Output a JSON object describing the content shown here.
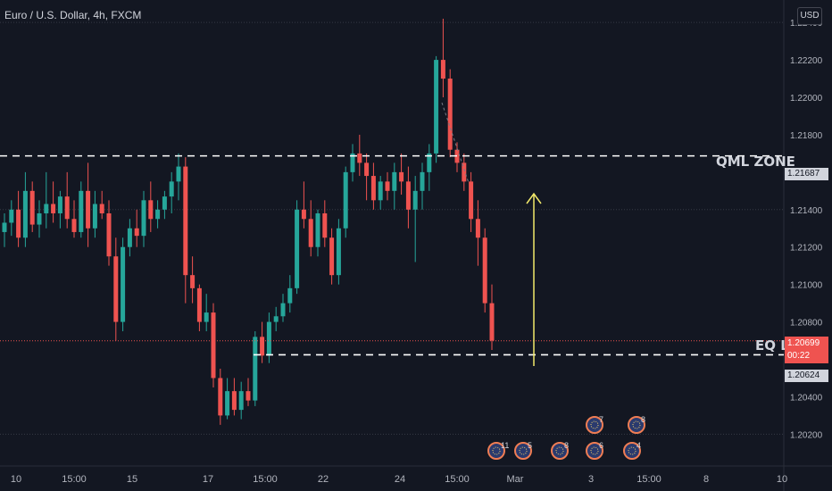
{
  "header": {
    "title": "Euro / U.S. Dollar, 4h, FXCM",
    "currency": "USD"
  },
  "colors": {
    "background": "#131722",
    "bull": "#26a69a",
    "bear": "#ef5350",
    "grid": "#363a45",
    "text": "#b2b5be",
    "arrow": "#f2e96b"
  },
  "annotations": {
    "qml_label": "QML ZONE",
    "qml_price": "1.21687",
    "eq_label": "EQ L",
    "eq_price": "1.20624",
    "current_price": "1.20699",
    "countdown": "00:22"
  },
  "chart_data": {
    "type": "candlestick",
    "y_ticks": [
      "1.22400",
      "1.22200",
      "1.22000",
      "1.21800",
      "1.21600",
      "1.21400",
      "1.21200",
      "1.21000",
      "1.20800",
      "1.20600",
      "1.20400",
      "1.20200"
    ],
    "x_ticks": [
      "10",
      "15:00",
      "15",
      "17",
      "15:00",
      "22",
      "24",
      "15:00",
      "Mar",
      "3",
      "15:00",
      "8",
      "10"
    ],
    "ylim": [
      1.2003,
      1.2252
    ],
    "levels": {
      "qml": 1.21687,
      "eq": 1.20624,
      "current": 1.20699
    },
    "candles": [
      [
        1.2128,
        1.2138,
        1.212,
        1.2133
      ],
      [
        1.2133,
        1.2145,
        1.2126,
        1.214
      ],
      [
        1.214,
        1.215,
        1.212,
        1.2125
      ],
      [
        1.2125,
        1.216,
        1.212,
        1.215
      ],
      [
        1.215,
        1.2155,
        1.2128,
        1.2132
      ],
      [
        1.2132,
        1.2145,
        1.2125,
        1.2138
      ],
      [
        1.2138,
        1.216,
        1.213,
        1.2143
      ],
      [
        1.2143,
        1.2155,
        1.2133,
        1.2138
      ],
      [
        1.2138,
        1.215,
        1.213,
        1.2147
      ],
      [
        1.2147,
        1.216,
        1.213,
        1.2135
      ],
      [
        1.2135,
        1.2145,
        1.2125,
        1.2128
      ],
      [
        1.2128,
        1.2155,
        1.2125,
        1.215
      ],
      [
        1.215,
        1.2165,
        1.212,
        1.213
      ],
      [
        1.213,
        1.215,
        1.2125,
        1.2143
      ],
      [
        1.2143,
        1.215,
        1.2135,
        1.2138
      ],
      [
        1.2138,
        1.2145,
        1.211,
        1.2115
      ],
      [
        1.2115,
        1.2125,
        1.207,
        1.208
      ],
      [
        1.208,
        1.2125,
        1.2075,
        1.212
      ],
      [
        1.212,
        1.2135,
        1.2115,
        1.213
      ],
      [
        1.213,
        1.214,
        1.212,
        1.2126
      ],
      [
        1.2126,
        1.215,
        1.212,
        1.2145
      ],
      [
        1.2145,
        1.2155,
        1.2128,
        1.2135
      ],
      [
        1.2135,
        1.2145,
        1.213,
        1.214
      ],
      [
        1.214,
        1.215,
        1.2135,
        1.2147
      ],
      [
        1.2147,
        1.216,
        1.2138,
        1.2155
      ],
      [
        1.2155,
        1.217,
        1.2145,
        1.2163
      ],
      [
        1.2163,
        1.2168,
        1.209,
        1.2105
      ],
      [
        1.2105,
        1.2115,
        1.209,
        1.2098
      ],
      [
        1.2098,
        1.21,
        1.2075,
        1.208
      ],
      [
        1.208,
        1.2095,
        1.2075,
        1.2085
      ],
      [
        1.2085,
        1.209,
        1.2045,
        1.205
      ],
      [
        1.205,
        1.2055,
        1.2025,
        1.203
      ],
      [
        1.203,
        1.205,
        1.2028,
        1.2043
      ],
      [
        1.2043,
        1.205,
        1.203,
        1.2033
      ],
      [
        1.2033,
        1.2048,
        1.2028,
        1.2043
      ],
      [
        1.2043,
        1.205,
        1.2035,
        1.2038
      ],
      [
        1.2038,
        1.2075,
        1.2035,
        1.2072
      ],
      [
        1.2072,
        1.208,
        1.2058,
        1.2062
      ],
      [
        1.2062,
        1.2085,
        1.2058,
        1.208
      ],
      [
        1.208,
        1.2088,
        1.2075,
        1.2083
      ],
      [
        1.2083,
        1.2095,
        1.208,
        1.209
      ],
      [
        1.209,
        1.2105,
        1.2085,
        1.2098
      ],
      [
        1.2098,
        1.2145,
        1.2095,
        1.214
      ],
      [
        1.214,
        1.2155,
        1.213,
        1.2135
      ],
      [
        1.2135,
        1.2145,
        1.2115,
        1.212
      ],
      [
        1.212,
        1.214,
        1.2115,
        1.2138
      ],
      [
        1.2138,
        1.2145,
        1.212,
        1.2125
      ],
      [
        1.2125,
        1.213,
        1.21,
        1.2105
      ],
      [
        1.2105,
        1.2135,
        1.21,
        1.213
      ],
      [
        1.213,
        1.2163,
        1.2125,
        1.216
      ],
      [
        1.216,
        1.2175,
        1.2155,
        1.217
      ],
      [
        1.217,
        1.218,
        1.2158,
        1.2165
      ],
      [
        1.2165,
        1.217,
        1.2145,
        1.2158
      ],
      [
        1.2158,
        1.2165,
        1.214,
        1.2145
      ],
      [
        1.2145,
        1.2158,
        1.214,
        1.2155
      ],
      [
        1.2155,
        1.216,
        1.2145,
        1.215
      ],
      [
        1.215,
        1.2165,
        1.214,
        1.216
      ],
      [
        1.216,
        1.217,
        1.2148,
        1.2155
      ],
      [
        1.2155,
        1.2163,
        1.213,
        1.214
      ],
      [
        1.214,
        1.2158,
        1.2112,
        1.215
      ],
      [
        1.215,
        1.2165,
        1.214,
        1.216
      ],
      [
        1.216,
        1.2175,
        1.215,
        1.217
      ],
      [
        1.217,
        1.2222,
        1.2165,
        1.222
      ],
      [
        1.222,
        1.2242,
        1.22,
        1.221
      ],
      [
        1.221,
        1.2215,
        1.2168,
        1.2172
      ],
      [
        1.2172,
        1.2176,
        1.216,
        1.2165
      ],
      [
        1.2165,
        1.217,
        1.215,
        1.2155
      ],
      [
        1.2155,
        1.216,
        1.2128,
        1.2135
      ],
      [
        1.2135,
        1.2145,
        1.211,
        1.2125
      ],
      [
        1.2125,
        1.213,
        1.2085,
        1.209
      ],
      [
        1.209,
        1.21,
        1.2065,
        1.207
      ]
    ]
  }
}
